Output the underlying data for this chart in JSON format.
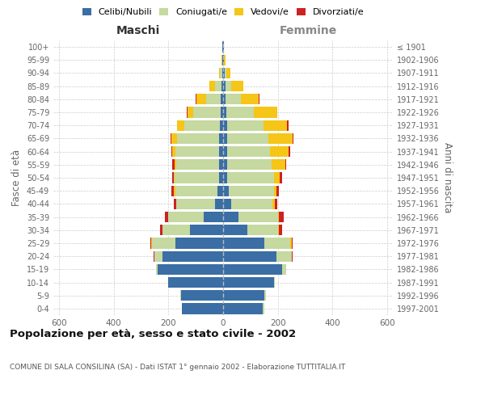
{
  "age_groups": [
    "0-4",
    "5-9",
    "10-14",
    "15-19",
    "20-24",
    "25-29",
    "30-34",
    "35-39",
    "40-44",
    "45-49",
    "50-54",
    "55-59",
    "60-64",
    "65-69",
    "70-74",
    "75-79",
    "80-84",
    "85-89",
    "90-94",
    "95-99",
    "100+"
  ],
  "birth_years": [
    "1997-2001",
    "1992-1996",
    "1987-1991",
    "1982-1986",
    "1977-1981",
    "1972-1976",
    "1967-1971",
    "1962-1966",
    "1957-1961",
    "1952-1956",
    "1947-1951",
    "1942-1946",
    "1937-1941",
    "1932-1936",
    "1927-1931",
    "1922-1926",
    "1917-1921",
    "1912-1916",
    "1907-1911",
    "1902-1906",
    "≤ 1901"
  ],
  "colors": {
    "celibi": "#3a6ea5",
    "coniugati": "#c5d9a0",
    "vedovi": "#f5c518",
    "divorziati": "#cc2222"
  },
  "male": {
    "celibi": [
      150,
      155,
      200,
      240,
      220,
      175,
      120,
      70,
      30,
      20,
      16,
      16,
      15,
      14,
      12,
      10,
      8,
      5,
      3,
      2,
      2
    ],
    "coniugati": [
      2,
      2,
      2,
      5,
      30,
      85,
      100,
      130,
      140,
      155,
      160,
      155,
      160,
      155,
      130,
      100,
      55,
      25,
      8,
      2,
      0
    ],
    "vedovi": [
      0,
      0,
      0,
      0,
      2,
      2,
      2,
      2,
      2,
      5,
      5,
      5,
      10,
      20,
      25,
      20,
      35,
      20,
      5,
      2,
      0
    ],
    "divorziati": [
      0,
      0,
      0,
      0,
      2,
      5,
      8,
      10,
      8,
      8,
      5,
      10,
      5,
      2,
      2,
      2,
      2,
      0,
      0,
      0,
      0
    ]
  },
  "female": {
    "nubili": [
      145,
      150,
      185,
      215,
      195,
      150,
      90,
      55,
      30,
      20,
      16,
      16,
      15,
      15,
      14,
      12,
      10,
      10,
      5,
      2,
      2
    ],
    "coniugati": [
      5,
      5,
      5,
      15,
      55,
      95,
      110,
      145,
      150,
      165,
      170,
      160,
      155,
      150,
      135,
      100,
      55,
      20,
      8,
      2,
      0
    ],
    "vedovi": [
      0,
      0,
      0,
      0,
      2,
      5,
      5,
      5,
      8,
      10,
      20,
      50,
      70,
      90,
      85,
      85,
      65,
      45,
      15,
      5,
      1
    ],
    "divorziati": [
      0,
      0,
      0,
      0,
      2,
      5,
      10,
      15,
      10,
      10,
      10,
      5,
      5,
      2,
      5,
      2,
      2,
      0,
      0,
      0,
      0
    ]
  },
  "xlim": 620,
  "title": "Popolazione per età, sesso e stato civile - 2002",
  "subtitle": "COMUNE DI SALA CONSILINA (SA) - Dati ISTAT 1° gennaio 2002 - Elaborazione TUTTITALIA.IT",
  "xlabel_left": "Maschi",
  "xlabel_right": "Femmine",
  "ylabel": "Fasce di età",
  "ylabel_right": "Anni di nascita",
  "background_color": "#ffffff"
}
